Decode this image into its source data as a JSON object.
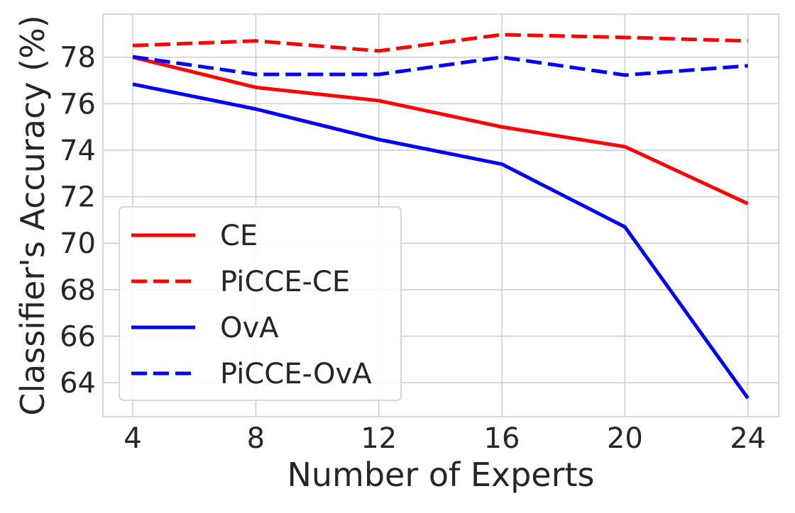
{
  "chart_data": {
    "type": "line",
    "title": "",
    "xlabel": "Number of Experts",
    "ylabel": "Classifier's Accuracy (%)",
    "x": [
      4,
      8,
      12,
      16,
      20,
      24
    ],
    "xticks": [
      4,
      8,
      12,
      16,
      20,
      24
    ],
    "yticks": [
      64,
      66,
      68,
      70,
      72,
      74,
      76,
      78
    ],
    "xlim": [
      3.03,
      25.0
    ],
    "ylim": [
      62.54,
      79.85
    ],
    "grid": true,
    "legend_placement": "lower-left",
    "series": [
      {
        "name": "CE",
        "color": "#ff0000",
        "dash": "solid",
        "values": [
          78.0,
          76.7,
          76.13,
          75.0,
          74.15,
          71.7
        ]
      },
      {
        "name": "PiCCE-CE",
        "color": "#ff0000",
        "dash": "dashed",
        "values": [
          78.5,
          78.7,
          78.27,
          78.97,
          78.85,
          78.7
        ]
      },
      {
        "name": "OvA",
        "color": "#0000ff",
        "dash": "solid",
        "values": [
          76.84,
          75.77,
          74.46,
          73.4,
          70.7,
          63.33
        ]
      },
      {
        "name": "PiCCE-OvA",
        "color": "#0000ff",
        "dash": "dashed",
        "values": [
          78.02,
          77.26,
          77.26,
          78.0,
          77.23,
          77.63
        ]
      }
    ]
  }
}
